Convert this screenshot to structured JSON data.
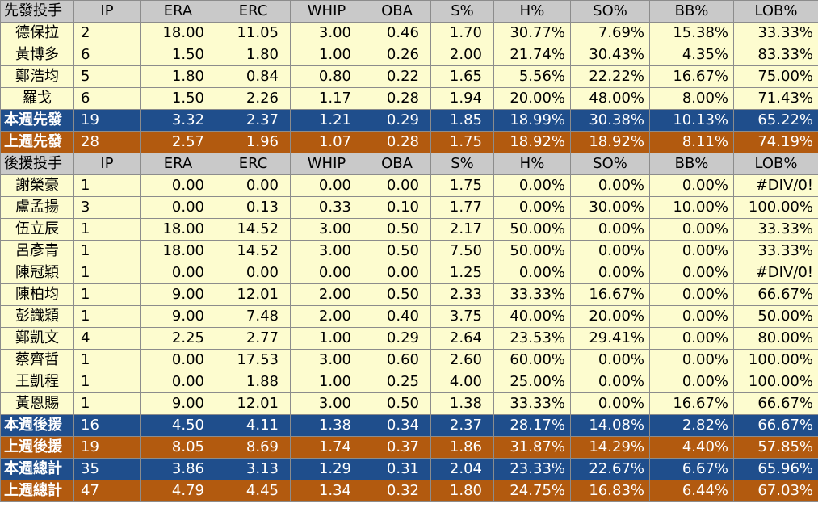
{
  "headers": {
    "starter": [
      "先發投手",
      "IP",
      "ERA",
      "ERC",
      "WHIP",
      "OBA",
      "S%",
      "H%",
      "SO%",
      "BB%",
      "LOB%"
    ],
    "reliever": [
      "後援投手",
      "IP",
      "ERA",
      "ERC",
      "WHIP",
      "OBA",
      "S%",
      "H%",
      "SO%",
      "BB%",
      "LOB%"
    ]
  },
  "starters": [
    [
      "德保拉",
      "2",
      "18.00",
      "11.05",
      "3.00",
      "0.46",
      "1.70",
      "30.77%",
      "7.69%",
      "15.38%",
      "33.33%"
    ],
    [
      "黃博多",
      "6",
      "1.50",
      "1.80",
      "1.00",
      "0.26",
      "2.00",
      "21.74%",
      "30.43%",
      "4.35%",
      "83.33%"
    ],
    [
      "鄭浩均",
      "5",
      "1.80",
      "0.84",
      "0.80",
      "0.22",
      "1.65",
      "5.56%",
      "22.22%",
      "16.67%",
      "75.00%"
    ],
    [
      "羅戈",
      "6",
      "1.50",
      "2.26",
      "1.17",
      "0.28",
      "1.94",
      "20.00%",
      "48.00%",
      "8.00%",
      "71.43%"
    ]
  ],
  "starter_totals": {
    "this_week": [
      "本週先發",
      "19",
      "3.32",
      "2.37",
      "1.21",
      "0.29",
      "1.85",
      "18.99%",
      "30.38%",
      "10.13%",
      "65.22%"
    ],
    "last_week": [
      "上週先發",
      "28",
      "2.57",
      "1.96",
      "1.07",
      "0.28",
      "1.75",
      "18.92%",
      "18.92%",
      "8.11%",
      "74.19%"
    ]
  },
  "relievers": [
    [
      "謝榮豪",
      "1",
      "0.00",
      "0.00",
      "0.00",
      "0.00",
      "1.75",
      "0.00%",
      "0.00%",
      "0.00%",
      "#DIV/0!"
    ],
    [
      "盧孟揚",
      "3",
      "0.00",
      "0.13",
      "0.33",
      "0.10",
      "1.77",
      "0.00%",
      "30.00%",
      "10.00%",
      "100.00%"
    ],
    [
      "伍立辰",
      "1",
      "18.00",
      "14.52",
      "3.00",
      "0.50",
      "2.17",
      "50.00%",
      "0.00%",
      "0.00%",
      "33.33%"
    ],
    [
      "呂彥青",
      "1",
      "18.00",
      "14.52",
      "3.00",
      "0.50",
      "7.50",
      "50.00%",
      "0.00%",
      "0.00%",
      "33.33%"
    ],
    [
      "陳冠穎",
      "1",
      "0.00",
      "0.00",
      "0.00",
      "0.00",
      "1.25",
      "0.00%",
      "0.00%",
      "0.00%",
      "#DIV/0!"
    ],
    [
      "陳柏均",
      "1",
      "9.00",
      "12.01",
      "2.00",
      "0.50",
      "2.33",
      "33.33%",
      "16.67%",
      "0.00%",
      "66.67%"
    ],
    [
      "彭識穎",
      "1",
      "9.00",
      "7.48",
      "2.00",
      "0.40",
      "3.75",
      "40.00%",
      "20.00%",
      "0.00%",
      "50.00%"
    ],
    [
      "鄭凱文",
      "4",
      "2.25",
      "2.77",
      "1.00",
      "0.29",
      "2.64",
      "23.53%",
      "29.41%",
      "0.00%",
      "80.00%"
    ],
    [
      "蔡齊哲",
      "1",
      "0.00",
      "17.53",
      "3.00",
      "0.60",
      "2.60",
      "60.00%",
      "0.00%",
      "0.00%",
      "100.00%"
    ],
    [
      "王凱程",
      "1",
      "0.00",
      "1.88",
      "1.00",
      "0.25",
      "4.00",
      "25.00%",
      "0.00%",
      "0.00%",
      "100.00%"
    ],
    [
      "黃恩賜",
      "1",
      "9.00",
      "12.01",
      "3.00",
      "0.50",
      "1.38",
      "33.33%",
      "0.00%",
      "16.67%",
      "66.67%"
    ]
  ],
  "reliever_totals": {
    "this_week": [
      "本週後援",
      "16",
      "4.50",
      "4.11",
      "1.38",
      "0.34",
      "2.37",
      "28.17%",
      "14.08%",
      "2.82%",
      "66.67%"
    ],
    "last_week": [
      "上週後援",
      "19",
      "8.05",
      "8.69",
      "1.74",
      "0.37",
      "1.86",
      "31.87%",
      "14.29%",
      "4.40%",
      "57.85%"
    ]
  },
  "grand_totals": {
    "this_week": [
      "本週總計",
      "35",
      "3.86",
      "3.13",
      "1.29",
      "0.31",
      "2.04",
      "23.33%",
      "22.67%",
      "6.67%",
      "65.96%"
    ],
    "last_week": [
      "上週總計",
      "47",
      "4.79",
      "4.45",
      "1.34",
      "0.32",
      "1.80",
      "24.75%",
      "16.83%",
      "6.44%",
      "67.03%"
    ]
  },
  "colors": {
    "header_bg": "#c9c9c9",
    "row_bg": "#fdfccf",
    "this_week_bg": "#1f4e8c",
    "last_week_bg": "#b25a0f"
  }
}
